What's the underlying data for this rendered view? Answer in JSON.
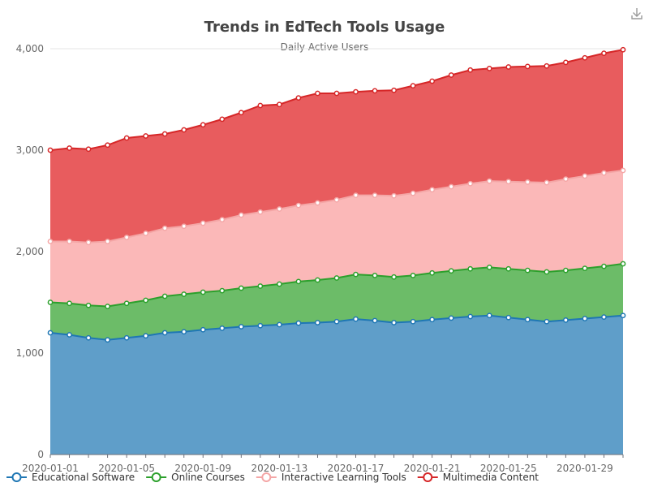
{
  "toolbar": {
    "download_icon": "download-icon"
  },
  "chart_data": {
    "type": "area",
    "stacked": true,
    "title": "Trends in EdTech Tools Usage",
    "subtitle": "Daily Active Users",
    "xlabel": "",
    "ylabel": "",
    "ylim": [
      0,
      4000
    ],
    "yticks": [
      0,
      1000,
      2000,
      3000,
      4000
    ],
    "ytick_labels": [
      "0",
      "1,000",
      "2,000",
      "3,000",
      "4,000"
    ],
    "x": [
      "2020-01-01",
      "2020-01-02",
      "2020-01-03",
      "2020-01-04",
      "2020-01-05",
      "2020-01-06",
      "2020-01-07",
      "2020-01-08",
      "2020-01-09",
      "2020-01-10",
      "2020-01-11",
      "2020-01-12",
      "2020-01-13",
      "2020-01-14",
      "2020-01-15",
      "2020-01-16",
      "2020-01-17",
      "2020-01-18",
      "2020-01-19",
      "2020-01-20",
      "2020-01-21",
      "2020-01-22",
      "2020-01-23",
      "2020-01-24",
      "2020-01-25",
      "2020-01-26",
      "2020-01-27",
      "2020-01-28",
      "2020-01-29",
      "2020-01-30",
      "2020-01-31"
    ],
    "xtick_labels": [
      "2020-01-01",
      "2020-01-05",
      "2020-01-09",
      "2020-01-13",
      "2020-01-17",
      "2020-01-21",
      "2020-01-25",
      "2020-01-29"
    ],
    "legend_position": "bottom-left",
    "series": [
      {
        "name": "Educational Software",
        "color": "#1f77b4",
        "fill": "#5f9ec9",
        "values": [
          1200,
          1180,
          1150,
          1130,
          1150,
          1170,
          1200,
          1210,
          1230,
          1245,
          1260,
          1270,
          1280,
          1295,
          1300,
          1310,
          1335,
          1320,
          1300,
          1310,
          1330,
          1345,
          1360,
          1370,
          1350,
          1330,
          1310,
          1325,
          1340,
          1355,
          1370
        ]
      },
      {
        "name": "Online Courses",
        "color": "#2ca02c",
        "fill": "#6cbc68",
        "values": [
          300,
          310,
          320,
          330,
          340,
          350,
          360,
          370,
          370,
          370,
          380,
          390,
          400,
          410,
          420,
          430,
          440,
          445,
          450,
          455,
          460,
          465,
          470,
          475,
          480,
          485,
          490,
          490,
          495,
          500,
          510
        ]
      },
      {
        "name": "Interactive Learning Tools",
        "color": "#f4a6a6",
        "fill": "#fbb8b8",
        "values": [
          600,
          610,
          620,
          640,
          650,
          660,
          670,
          670,
          680,
          700,
          720,
          730,
          740,
          750,
          760,
          770,
          780,
          790,
          800,
          810,
          820,
          830,
          840,
          850,
          860,
          870,
          880,
          900,
          910,
          920,
          920
        ]
      },
      {
        "name": "Multimedia Content",
        "color": "#d62728",
        "fill": "#e85c5e",
        "values": [
          900,
          920,
          920,
          950,
          980,
          960,
          930,
          950,
          970,
          990,
          1010,
          1050,
          1030,
          1060,
          1080,
          1050,
          1020,
          1030,
          1040,
          1060,
          1070,
          1100,
          1120,
          1110,
          1130,
          1140,
          1150,
          1150,
          1165,
          1180,
          1190
        ]
      }
    ]
  }
}
